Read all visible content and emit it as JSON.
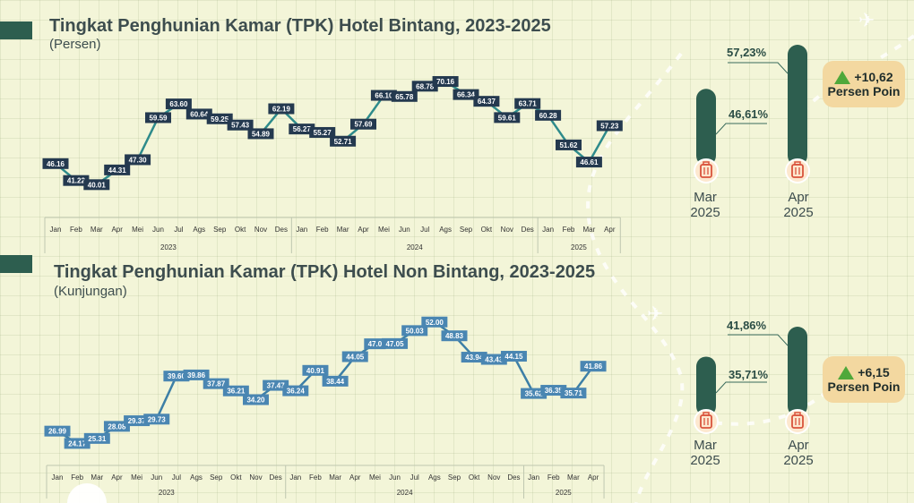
{
  "colors": {
    "accent": "#2d5e4f",
    "chart1_line": "#2e8b8b",
    "chart1_label_bg": "#24394f",
    "chart2_line": "#3d7fa6",
    "chart2_label_bg": "#4a86b2",
    "badge_bg": "#f3d8a0",
    "up_arrow": "#4fa83a"
  },
  "months": [
    "Jan",
    "Feb",
    "Mar",
    "Apr",
    "Mei",
    "Jun",
    "Jul",
    "Ags",
    "Sep",
    "Okt",
    "Nov",
    "Des",
    "Jan",
    "Feb",
    "Mar",
    "Apr",
    "Mei",
    "Jun",
    "Jul",
    "Ags",
    "Sep",
    "Okt",
    "Nov",
    "Des",
    "Jan",
    "Feb",
    "Mar",
    "Apr"
  ],
  "years": [
    "2023",
    "2024",
    "2025"
  ],
  "chart_data": [
    {
      "type": "line",
      "title": "Tingkat Penghunian Kamar (TPK) Hotel Bintang, 2023-2025",
      "subtitle": "(Persen)",
      "x": [
        "Jan",
        "Feb",
        "Mar",
        "Apr",
        "Mei",
        "Jun",
        "Jul",
        "Ags",
        "Sep",
        "Okt",
        "Nov",
        "Des",
        "Jan",
        "Feb",
        "Mar",
        "Apr",
        "Mei",
        "Jun",
        "Jul",
        "Ags",
        "Sep",
        "Okt",
        "Nov",
        "Des",
        "Jan",
        "Feb",
        "Mar",
        "Apr"
      ],
      "x_groups": [
        "2023",
        "2024",
        "2025"
      ],
      "values": [
        46.16,
        41.22,
        40.01,
        44.31,
        47.3,
        59.59,
        63.6,
        60.64,
        59.25,
        57.43,
        54.89,
        62.19,
        56.27,
        55.27,
        52.71,
        57.69,
        66.1,
        65.78,
        68.78,
        70.16,
        66.34,
        64.37,
        59.61,
        63.71,
        60.28,
        51.62,
        46.61,
        57.23
      ],
      "labels": [
        "46.16",
        "41.22",
        "40.01",
        "44.31",
        "47.30",
        "59.59",
        "63.60",
        "60.64",
        "59.25",
        "57.43",
        "54.89",
        "62.19",
        "56.27",
        "55.27",
        "52.71",
        "57.69",
        "66.10",
        "65.78",
        "68.78",
        "70.16",
        "66.34",
        "64.37",
        "59.61",
        "63.71",
        "60.28",
        "51.62",
        "46.61",
        "57.23"
      ],
      "ylim": [
        38,
        72
      ],
      "comparison": {
        "type": "bar",
        "categories": [
          "Mar 2025",
          "Apr 2025"
        ],
        "values": [
          46.61,
          57.23
        ],
        "labels": [
          "46,61%",
          "57,23%"
        ],
        "change": "+10,62",
        "change_unit": "Persen Poin"
      }
    },
    {
      "type": "line",
      "title": "Tingkat Penghunian Kamar (TPK) Hotel Non Bintang, 2023-2025",
      "subtitle": "(Kunjungan)",
      "x": [
        "Jan",
        "Feb",
        "Mar",
        "Apr",
        "Mei",
        "Jun",
        "Jul",
        "Ags",
        "Sep",
        "Okt",
        "Nov",
        "Des",
        "Jan",
        "Feb",
        "Mar",
        "Apr",
        "Mei",
        "Jun",
        "Jul",
        "Ags",
        "Sep",
        "Okt",
        "Nov",
        "Des",
        "Jan",
        "Feb",
        "Mar",
        "Apr"
      ],
      "x_groups": [
        "2023",
        "2024",
        "2025"
      ],
      "values": [
        26.99,
        24.17,
        25.31,
        28.08,
        29.37,
        29.73,
        39.6,
        39.86,
        37.87,
        36.21,
        34.2,
        37.47,
        36.24,
        40.91,
        38.44,
        44.05,
        47.0,
        47.05,
        50.03,
        52.0,
        48.83,
        43.94,
        43.43,
        44.15,
        35.62,
        36.35,
        35.71,
        41.86
      ],
      "labels": [
        "26.99",
        "24.17",
        "25.31",
        "28.08",
        "29.37",
        "29.73",
        "39.60",
        "39.86",
        "37.87",
        "36.21",
        "34.20",
        "37.47",
        "36.24",
        "40.91",
        "38.44",
        "44.05",
        "47.0",
        "47.05",
        "50.03",
        "52.00",
        "48.83",
        "43.94",
        "43.43",
        "44.15",
        "35.62",
        "36.35",
        "35.71",
        "41.86"
      ],
      "ylim": [
        22,
        54
      ],
      "comparison": {
        "type": "bar",
        "categories": [
          "Mar 2025",
          "Apr 2025"
        ],
        "values": [
          35.71,
          41.86
        ],
        "labels": [
          "35,71%",
          "41,86%"
        ],
        "change": "+6,15",
        "change_unit": "Persen Poin"
      }
    }
  ],
  "bar_month_labels": [
    [
      "Mar",
      "2025"
    ],
    [
      "Apr",
      "2025"
    ]
  ]
}
